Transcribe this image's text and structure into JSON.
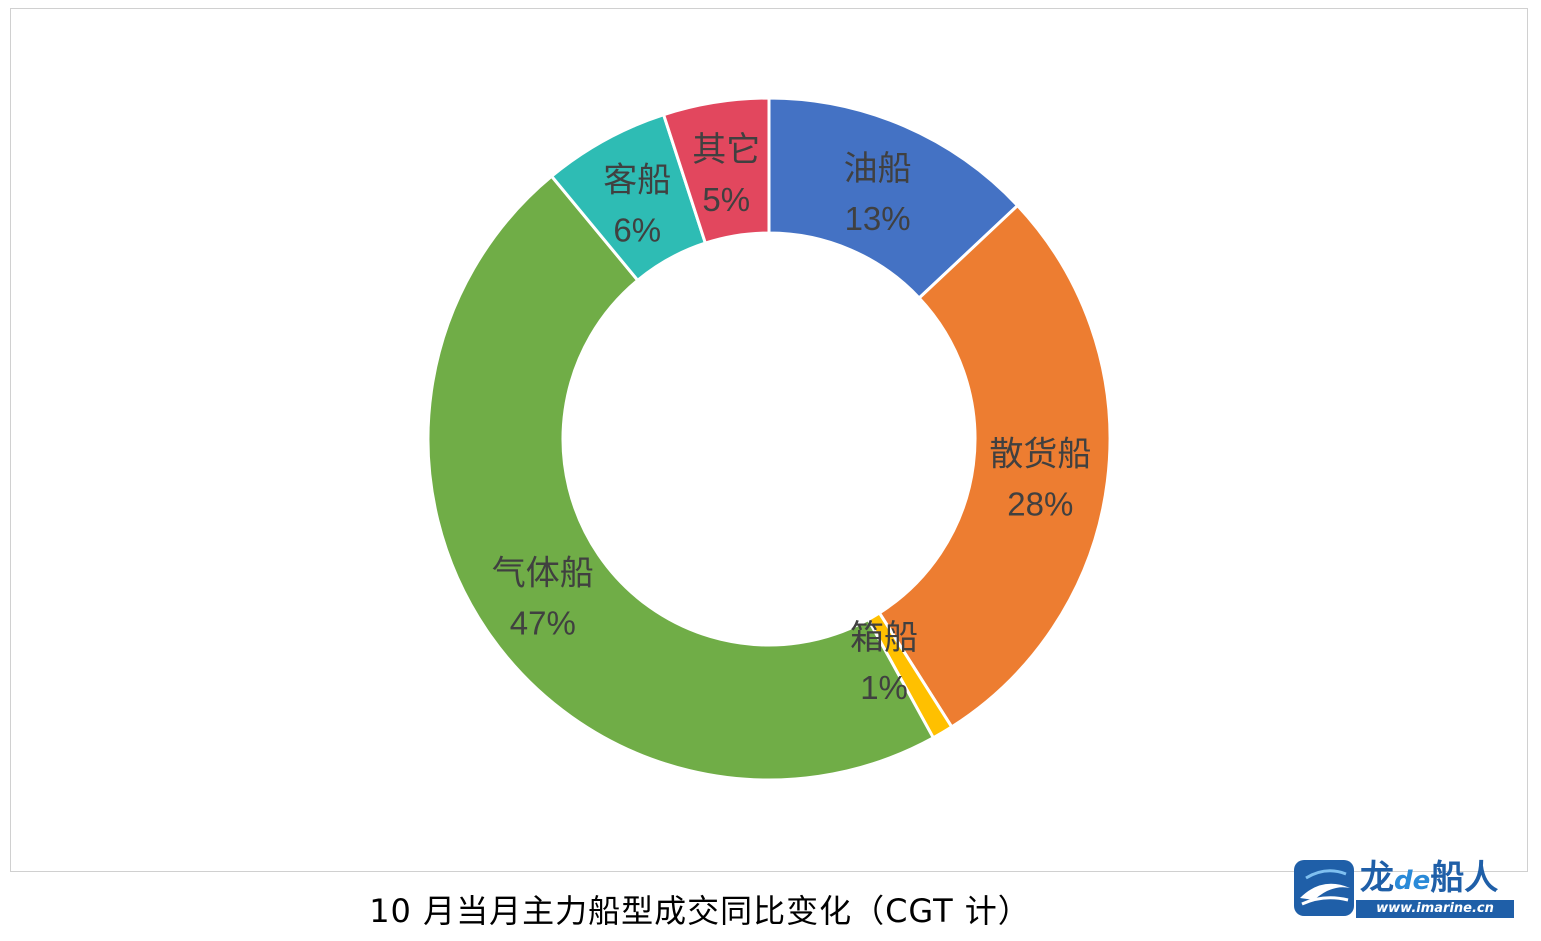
{
  "chart_data": {
    "type": "pie",
    "donut": true,
    "title": "10 月当月主力船型成交同比变化（CGT 计）",
    "categories": [
      "油船",
      "散货船",
      "箱船",
      "气体船",
      "客船",
      "其它"
    ],
    "values": [
      13,
      28,
      1,
      47,
      6,
      5
    ],
    "value_labels": [
      "13%",
      "28%",
      "1%",
      "47%",
      "6%",
      "5%"
    ],
    "colors": [
      "#4472C4",
      "#ED7D31",
      "#FFC000",
      "#70AD47",
      "#2EBCB4",
      "#E2475E"
    ],
    "legend": "none",
    "data_label_position": "on-slice"
  },
  "watermark": {
    "brand_text": "龙",
    "brand_de": "de",
    "brand_text2": "船人",
    "url": "www.imarine.cn"
  }
}
